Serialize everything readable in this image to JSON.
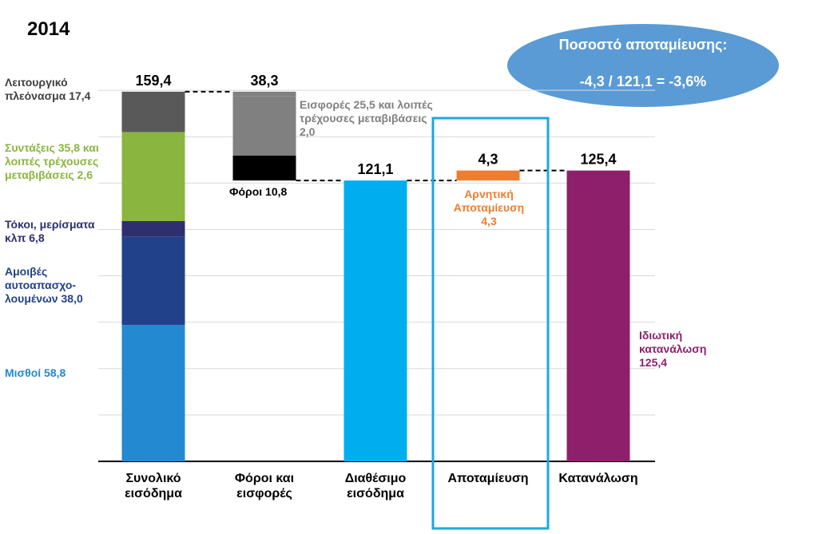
{
  "chart_data": {
    "type": "waterfall",
    "title": "2014",
    "categories": [
      "Συνολικό εισόδημα",
      "Φόροι και εισφορές",
      "Διαθέσιμο εισόδημα",
      "Αποταμίευση",
      "Κατανάλωση"
    ],
    "measure": [
      "absolute",
      "decrease",
      "absolute",
      "increase",
      "absolute"
    ],
    "values": [
      159.4,
      38.3,
      121.1,
      4.3,
      125.4
    ],
    "value_labels": [
      "159,4",
      "38,3",
      "121,1",
      "4,3",
      "125,4"
    ],
    "colors": [
      "#2389d0",
      "#808080",
      "#00aeef",
      "#ed7d31",
      "#8e1f6b"
    ],
    "segments": [
      [
        {
          "name": "Μισθοί",
          "value": 58.8,
          "value_label": "58,8",
          "color": "#2389d0"
        },
        {
          "name": "Αμοιβές αυτοαπασχο-λουμένων",
          "value": 38.0,
          "value_label": "38,0",
          "color": "#21418a"
        },
        {
          "name": "Τόκοι, μερίσματα κλπ",
          "value": 6.8,
          "value_label": "6,8",
          "color": "#2e2f6e"
        },
        {
          "name": "Συντάξεις",
          "value": 35.8,
          "value_label": "35,8",
          "color": "#8ab53f"
        },
        {
          "name": "και λοιπές τρέχουσες μεταβιβάσεις",
          "value": 2.6,
          "value_label": "2,6",
          "color": "#8ab53f"
        },
        {
          "name": "Λειτουργικό πλεόνασμα",
          "value": 17.4,
          "value_label": "17,4",
          "color": "#595959"
        }
      ],
      [
        {
          "name": "Φόροι",
          "value": 10.8,
          "value_label": "10,8",
          "color": "#000000"
        },
        {
          "name": "Εισφορές",
          "value": 25.5,
          "value_label": "25,5",
          "color": "#808080"
        },
        {
          "name": "και λοιπές τρέχουσες μεταβιβάσεις",
          "value": 2.0,
          "value_label": "2,0",
          "color": "#808080"
        }
      ],
      [],
      [],
      []
    ],
    "notes": {
      "3": "Αρνητική Αποταμίευση",
      "4": "Ιδιωτική κατανάλωση"
    },
    "ylim": [
      0,
      180
    ],
    "yticks": [
      0,
      20,
      40,
      60,
      80,
      100,
      120,
      140,
      160
    ],
    "grid": true,
    "callout": {
      "title": "Ποσοστό αποταμίευσης:",
      "formula": "-4,3 / 121,1 = -3,6%"
    }
  }
}
